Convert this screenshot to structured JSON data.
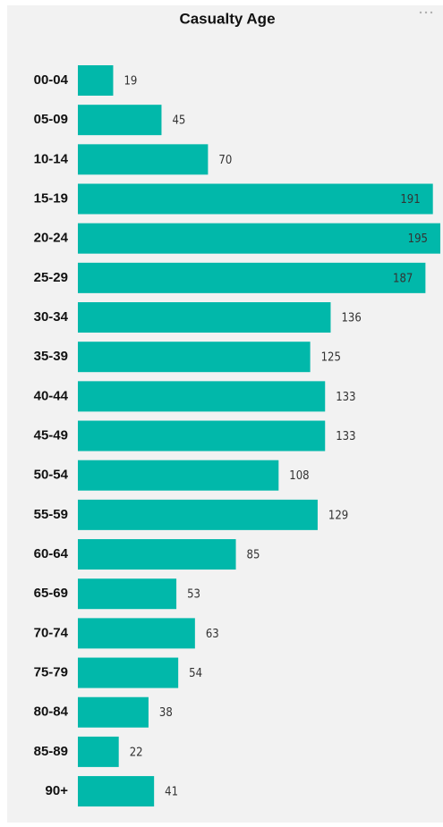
{
  "chart_data": {
    "type": "bar",
    "orientation": "horizontal",
    "title": "Casualty Age",
    "categories": [
      "00-04",
      "05-09",
      "10-14",
      "15-19",
      "20-24",
      "25-29",
      "30-34",
      "35-39",
      "40-44",
      "45-49",
      "50-54",
      "55-59",
      "60-64",
      "65-69",
      "70-74",
      "75-79",
      "80-84",
      "85-89",
      "90+"
    ],
    "values": [
      19,
      45,
      70,
      191,
      195,
      187,
      136,
      125,
      133,
      133,
      108,
      129,
      85,
      53,
      63,
      54,
      38,
      22,
      41
    ],
    "color": "#01b8aa"
  }
}
